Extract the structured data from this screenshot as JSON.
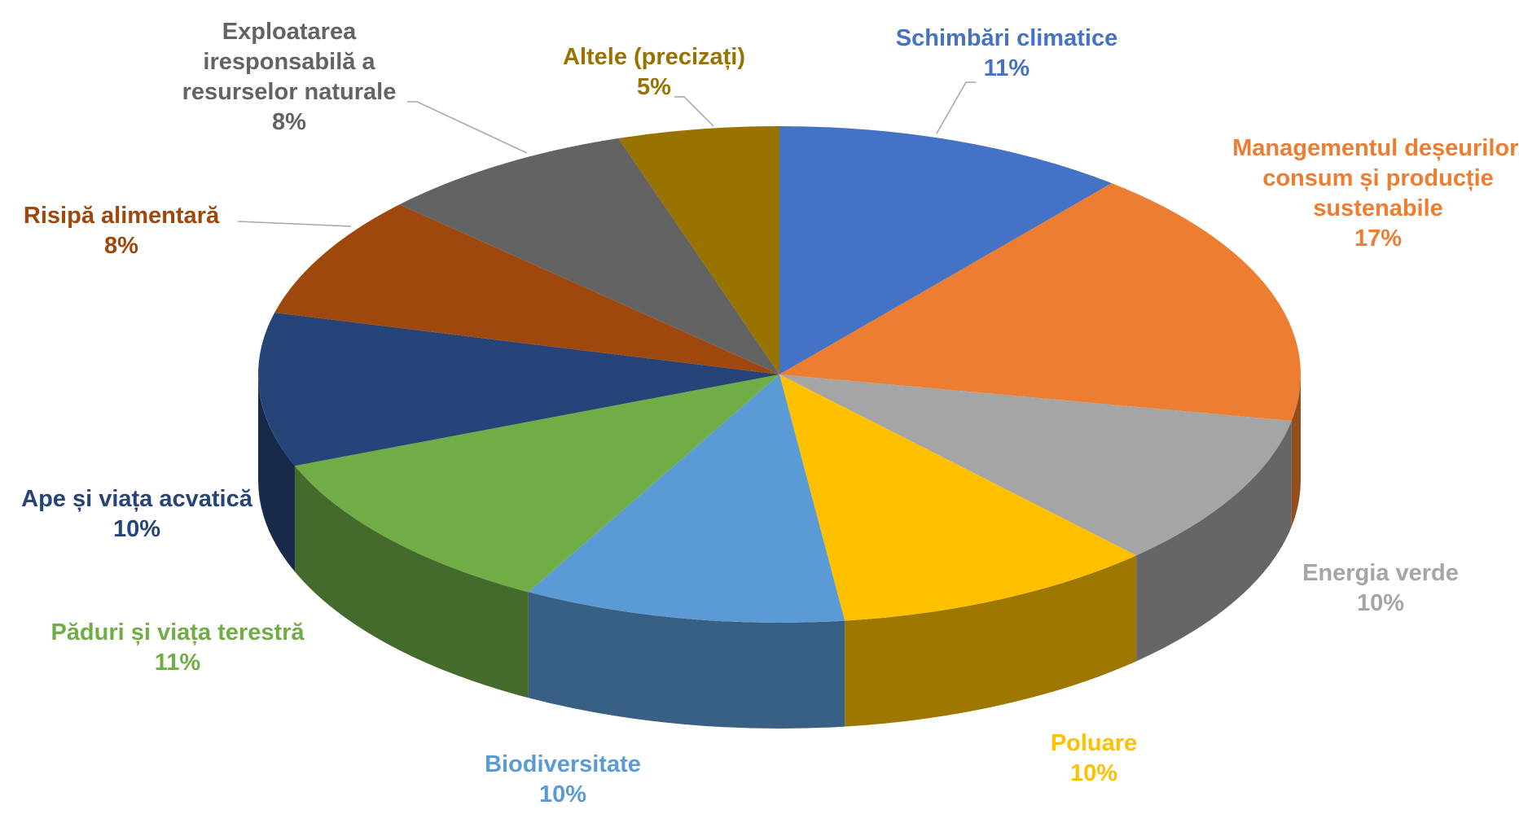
{
  "chart_data": {
    "type": "pie3d",
    "categories": [
      "Schimbări climatice",
      "Managementul deșeurilor, consum și producție sustenabile",
      "Energia verde",
      "Poluare",
      "Biodiversitate",
      "Păduri și viața terestră",
      "Ape și viața acvatică",
      "Risipă alimentară",
      "Exploatarea iresponsabilă a resurselor naturale",
      "Altele (precizați)"
    ],
    "values": [
      11,
      17,
      10,
      10,
      10,
      11,
      10,
      8,
      8,
      5
    ],
    "value_labels": [
      "11%",
      "17%",
      "10%",
      "10%",
      "10%",
      "11%",
      "10%",
      "8%",
      "8%",
      "5%"
    ],
    "colors": [
      "#4472c4",
      "#ed7d31",
      "#a5a5a5",
      "#ffc000",
      "#5b9bd5",
      "#70ad47",
      "#264478",
      "#9e480e",
      "#636363",
      "#997300"
    ]
  }
}
